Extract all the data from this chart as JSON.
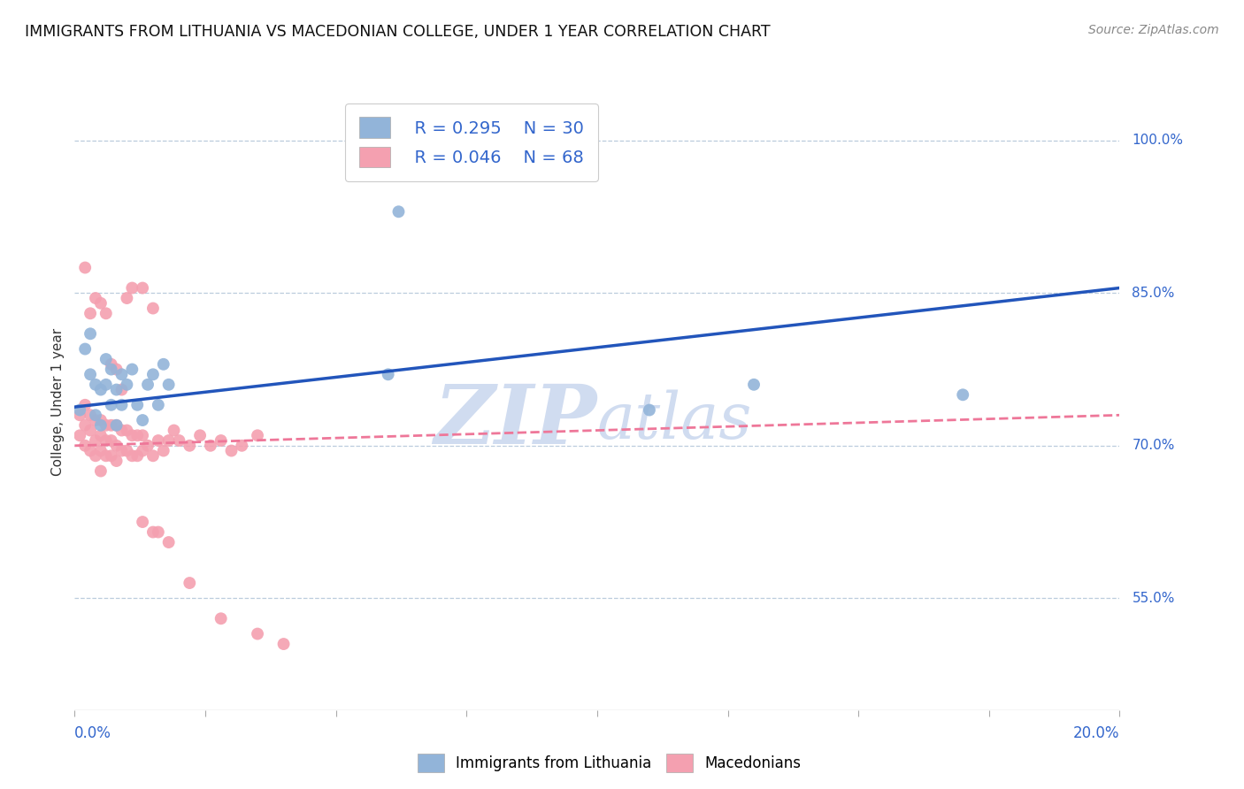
{
  "title": "IMMIGRANTS FROM LITHUANIA VS MACEDONIAN COLLEGE, UNDER 1 YEAR CORRELATION CHART",
  "source": "Source: ZipAtlas.com",
  "ylabel": "College, Under 1 year",
  "yaxis_labels": [
    "100.0%",
    "85.0%",
    "70.0%",
    "55.0%"
  ],
  "yaxis_values": [
    1.0,
    0.85,
    0.7,
    0.55
  ],
  "xmin": 0.0,
  "xmax": 0.2,
  "ymin": 0.44,
  "ymax": 1.045,
  "legend_blue_R": "R = 0.295",
  "legend_blue_N": "N = 30",
  "legend_pink_R": "R = 0.046",
  "legend_pink_N": "N = 68",
  "blue_color": "#92B4D9",
  "pink_color": "#F4A0B0",
  "blue_line_color": "#2255BB",
  "pink_line_color": "#EE7799",
  "watermark_color": "#D0DCF0",
  "blue_scatter_x": [
    0.001,
    0.002,
    0.003,
    0.003,
    0.004,
    0.004,
    0.005,
    0.005,
    0.006,
    0.006,
    0.007,
    0.007,
    0.008,
    0.008,
    0.009,
    0.009,
    0.01,
    0.011,
    0.012,
    0.013,
    0.014,
    0.015,
    0.016,
    0.017,
    0.018,
    0.06,
    0.062,
    0.11,
    0.13,
    0.17
  ],
  "blue_scatter_y": [
    0.735,
    0.795,
    0.81,
    0.77,
    0.76,
    0.73,
    0.755,
    0.72,
    0.785,
    0.76,
    0.775,
    0.74,
    0.755,
    0.72,
    0.77,
    0.74,
    0.76,
    0.775,
    0.74,
    0.725,
    0.76,
    0.77,
    0.74,
    0.78,
    0.76,
    0.77,
    0.93,
    0.735,
    0.76,
    0.75
  ],
  "pink_scatter_x": [
    0.001,
    0.001,
    0.002,
    0.002,
    0.002,
    0.003,
    0.003,
    0.003,
    0.004,
    0.004,
    0.004,
    0.005,
    0.005,
    0.005,
    0.005,
    0.006,
    0.006,
    0.006,
    0.007,
    0.007,
    0.007,
    0.008,
    0.008,
    0.008,
    0.009,
    0.009,
    0.01,
    0.01,
    0.011,
    0.011,
    0.012,
    0.012,
    0.013,
    0.013,
    0.014,
    0.015,
    0.016,
    0.017,
    0.018,
    0.019,
    0.02,
    0.022,
    0.024,
    0.026,
    0.028,
    0.03,
    0.032,
    0.035,
    0.002,
    0.003,
    0.004,
    0.005,
    0.006,
    0.007,
    0.008,
    0.009,
    0.01,
    0.011,
    0.013,
    0.015,
    0.013,
    0.015,
    0.016,
    0.018,
    0.022,
    0.028,
    0.035,
    0.04
  ],
  "pink_scatter_y": [
    0.73,
    0.71,
    0.74,
    0.72,
    0.7,
    0.73,
    0.715,
    0.695,
    0.725,
    0.705,
    0.69,
    0.725,
    0.71,
    0.695,
    0.675,
    0.72,
    0.705,
    0.69,
    0.72,
    0.705,
    0.69,
    0.72,
    0.7,
    0.685,
    0.715,
    0.695,
    0.715,
    0.695,
    0.71,
    0.69,
    0.71,
    0.69,
    0.71,
    0.695,
    0.7,
    0.69,
    0.705,
    0.695,
    0.705,
    0.715,
    0.705,
    0.7,
    0.71,
    0.7,
    0.705,
    0.695,
    0.7,
    0.71,
    0.875,
    0.83,
    0.845,
    0.84,
    0.83,
    0.78,
    0.775,
    0.755,
    0.845,
    0.855,
    0.855,
    0.835,
    0.625,
    0.615,
    0.615,
    0.605,
    0.565,
    0.53,
    0.515,
    0.505
  ],
  "blue_trend_x": [
    0.0,
    0.2
  ],
  "blue_trend_y": [
    0.738,
    0.855
  ],
  "pink_trend_x": [
    0.0,
    0.2
  ],
  "pink_trend_y": [
    0.7,
    0.73
  ]
}
